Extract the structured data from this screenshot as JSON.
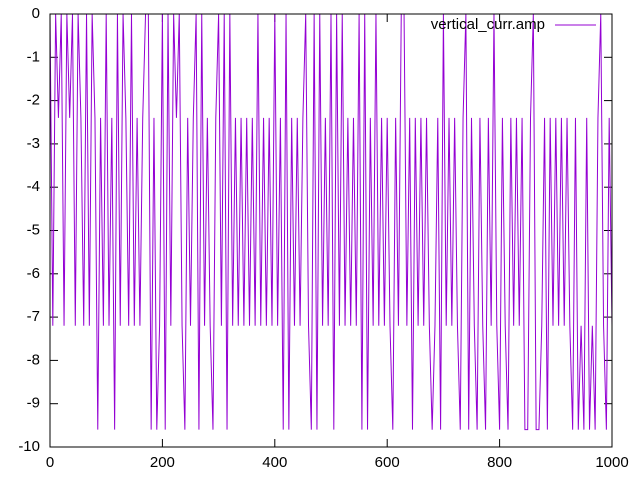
{
  "chart_data": {
    "type": "line",
    "x": [
      0,
      5,
      10,
      15,
      20,
      25,
      30,
      35,
      40,
      45,
      50,
      55,
      60,
      65,
      70,
      75,
      80,
      85,
      90,
      95,
      100,
      105,
      110,
      115,
      120,
      125,
      130,
      135,
      140,
      145,
      150,
      155,
      160,
      165,
      170,
      175,
      180,
      185,
      190,
      195,
      200,
      205,
      210,
      215,
      220,
      225,
      230,
      235,
      240,
      245,
      250,
      255,
      260,
      265,
      270,
      275,
      280,
      285,
      290,
      295,
      300,
      305,
      310,
      315,
      320,
      325,
      330,
      335,
      340,
      345,
      350,
      355,
      360,
      365,
      370,
      375,
      380,
      385,
      390,
      395,
      400,
      405,
      410,
      415,
      420,
      425,
      430,
      435,
      440,
      445,
      450,
      455,
      460,
      465,
      470,
      475,
      480,
      485,
      490,
      495,
      500,
      505,
      510,
      515,
      520,
      525,
      530,
      535,
      540,
      545,
      550,
      555,
      560,
      565,
      570,
      575,
      580,
      585,
      590,
      595,
      600,
      605,
      610,
      615,
      620,
      625,
      630,
      635,
      640,
      645,
      650,
      655,
      660,
      665,
      670,
      675,
      680,
      685,
      690,
      695,
      700,
      705,
      710,
      715,
      720,
      725,
      730,
      735,
      740,
      745,
      750,
      755,
      760,
      765,
      770,
      775,
      780,
      785,
      790,
      795,
      800,
      805,
      810,
      815,
      820,
      825,
      830,
      835,
      840,
      845,
      850,
      855,
      860,
      865,
      870,
      875,
      880,
      885,
      890,
      895,
      900,
      905,
      910,
      915,
      920,
      925,
      930,
      935,
      940,
      945,
      950,
      955,
      960,
      965,
      970,
      975,
      980,
      985,
      990,
      995,
      1000
    ],
    "series": [
      {
        "name": "vertical_curr.amp",
        "color": "#9400d3",
        "values": [
          0,
          -7.2,
          0,
          -2.4,
          0,
          -7.2,
          0,
          -2.4,
          0,
          -7.2,
          0,
          -2.4,
          -7.2,
          0,
          -7.2,
          0,
          -2.4,
          -9.6,
          -2.4,
          -7.2,
          0,
          -7.2,
          -2.4,
          -9.6,
          0,
          -7.2,
          0,
          -2.4,
          -7.2,
          0,
          -7.2,
          -2.4,
          -7.2,
          -2.4,
          0,
          0,
          -9.6,
          -2.4,
          -9.6,
          -7.2,
          0,
          -9.6,
          0,
          -7.2,
          0,
          -2.4,
          0,
          -7.2,
          -9.6,
          -2.4,
          -7.2,
          -2.4,
          0,
          -9.6,
          0,
          -7.2,
          -2.4,
          -7.2,
          -9.6,
          -2.4,
          0,
          -7.2,
          0,
          -9.6,
          0,
          -7.2,
          -2.4,
          -7.2,
          -2.4,
          -7.2,
          -2.4,
          -7.2,
          -2.4,
          -7.2,
          0,
          -7.2,
          -2.4,
          -7.2,
          -2.4,
          -7.2,
          0,
          -7.2,
          -2.4,
          -9.6,
          0,
          -9.6,
          -2.4,
          -7.2,
          -2.4,
          -7.2,
          -2.4,
          0,
          -7.2,
          -9.6,
          0,
          -9.6,
          0,
          -7.2,
          -2.4,
          -7.2,
          0,
          -9.6,
          0,
          -7.2,
          0,
          -7.2,
          -2.4,
          -7.2,
          -2.4,
          -7.2,
          0,
          -9.6,
          0,
          -9.6,
          -2.4,
          -7.2,
          0,
          -7.2,
          -2.4,
          -7.2,
          -2.4,
          -7.2,
          -9.6,
          -2.4,
          -7.2,
          0,
          0,
          -7.2,
          -2.4,
          -9.6,
          -2.4,
          -7.2,
          -2.4,
          -7.2,
          -2.4,
          -7.2,
          -9.6,
          -7.2,
          -2.4,
          -9.6,
          0,
          -7.2,
          -2.4,
          -7.2,
          -2.4,
          -7.2,
          -9.6,
          -2.4,
          0,
          -9.6,
          -2.4,
          -7.2,
          -9.6,
          -2.4,
          -7.2,
          -9.6,
          -2.4,
          -7.2,
          0,
          -7.2,
          -9.6,
          -2.4,
          -7.2,
          -9.6,
          -2.4,
          -7.2,
          -2.4,
          -7.2,
          -2.4,
          -9.6,
          -9.6,
          -2.4,
          0,
          -9.6,
          -9.6,
          -7.2,
          -2.4,
          -9.6,
          -2.4,
          -7.2,
          -2.4,
          -7.2,
          -2.4,
          -7.2,
          -2.4,
          -7.2,
          -9.6,
          -2.4,
          -9.6,
          -7.2,
          -9.6,
          -2.4,
          -9.6,
          -7.2,
          -9.6,
          -2.4,
          0,
          -7.2,
          -9.6,
          -2.4,
          -7.2
        ]
      }
    ],
    "xlim": [
      0,
      1000
    ],
    "xticks": [
      0,
      200,
      400,
      600,
      800,
      1000
    ],
    "ylim": [
      -10,
      0
    ],
    "yticks": [
      0,
      -1,
      -2,
      -3,
      -4,
      -5,
      -6,
      -7,
      -8,
      -9,
      -10
    ],
    "legend": "top-right",
    "grid": false
  }
}
